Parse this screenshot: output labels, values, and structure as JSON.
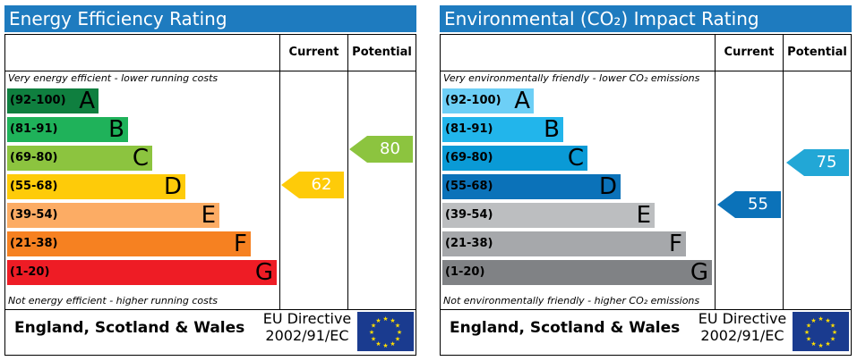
{
  "energy": {
    "title": "Energy Efficiency Rating",
    "col_current": "Current",
    "col_potential": "Potential",
    "top_note": "Very energy efficient - lower running costs",
    "bottom_note": "Not energy efficient - higher running costs",
    "bands": [
      {
        "range": "(92-100)",
        "letter": "A",
        "color": "#0f7f3f"
      },
      {
        "range": "(81-91)",
        "letter": "B",
        "color": "#1fb25a"
      },
      {
        "range": "(69-80)",
        "letter": "C",
        "color": "#8cc43f"
      },
      {
        "range": "(55-68)",
        "letter": "D",
        "color": "#fecb09"
      },
      {
        "range": "(39-54)",
        "letter": "E",
        "color": "#fcac64"
      },
      {
        "range": "(21-38)",
        "letter": "F",
        "color": "#f68121"
      },
      {
        "range": "(1-20)",
        "letter": "G",
        "color": "#ee1c25"
      }
    ],
    "current": {
      "value": "62",
      "color": "#fecb09"
    },
    "potential": {
      "value": "80",
      "color": "#8cc43f"
    },
    "region": "England, Scotland & Wales",
    "directive_line1": "EU Directive",
    "directive_line2": "2002/91/EC"
  },
  "environmental": {
    "title": "Environmental (CO₂) Impact Rating",
    "col_current": "Current",
    "col_potential": "Potential",
    "top_note": "Very environmentally friendly - lower CO₂ emissions",
    "bottom_note": "Not environmentally friendly - higher CO₂ emissions",
    "bands": [
      {
        "range": "(92-100)",
        "letter": "A",
        "color": "#6dcff6"
      },
      {
        "range": "(81-91)",
        "letter": "B",
        "color": "#22b5eb"
      },
      {
        "range": "(69-80)",
        "letter": "C",
        "color": "#0a9ad6"
      },
      {
        "range": "(55-68)",
        "letter": "D",
        "color": "#0b72b9"
      },
      {
        "range": "(39-54)",
        "letter": "E",
        "color": "#bcbec0"
      },
      {
        "range": "(21-38)",
        "letter": "F",
        "color": "#a6a8ab"
      },
      {
        "range": "(1-20)",
        "letter": "G",
        "color": "#808285"
      }
    ],
    "current": {
      "value": "55",
      "color": "#0b72b9"
    },
    "potential": {
      "value": "75",
      "color": "#22a7d6"
    },
    "region": "England, Scotland & Wales",
    "directive_line1": "EU Directive",
    "directive_line2": "2002/91/EC"
  }
}
